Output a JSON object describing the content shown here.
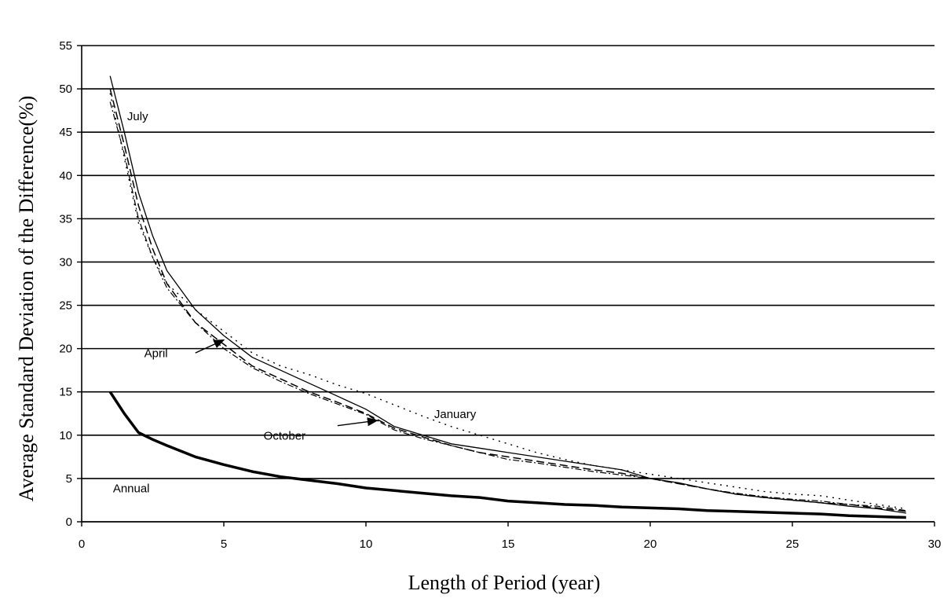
{
  "chart_data": {
    "type": "line",
    "xlabel": "Length of Period (year)",
    "ylabel": "Average Standard Deviation of the Difference(%)",
    "xlim": [
      0,
      30
    ],
    "ylim": [
      0,
      55
    ],
    "xticks": [
      0,
      5,
      10,
      15,
      20,
      25,
      30
    ],
    "yticks": [
      0,
      5,
      10,
      15,
      20,
      25,
      30,
      35,
      40,
      45,
      50,
      55
    ],
    "grid": "horizontal",
    "legend": "none",
    "series": [
      {
        "name": "July",
        "style": "thin-solid",
        "x": [
          1,
          1.5,
          2,
          2.5,
          3,
          4,
          5,
          6,
          7,
          8,
          9,
          10,
          11,
          12,
          13,
          14,
          15,
          16,
          17,
          18,
          19,
          20,
          21,
          22,
          23,
          24,
          25,
          26,
          27,
          28,
          29
        ],
        "y": [
          51.5,
          45.0,
          38.0,
          33.0,
          29.0,
          24.5,
          21.5,
          19.0,
          17.5,
          16.0,
          14.5,
          13.0,
          11.0,
          10.0,
          9.0,
          8.5,
          8.0,
          7.5,
          7.0,
          6.5,
          6.0,
          5.0,
          4.5,
          3.8,
          3.2,
          2.8,
          2.5,
          2.2,
          1.8,
          1.5,
          1.0
        ]
      },
      {
        "name": "April",
        "style": "dashed",
        "x": [
          1,
          1.5,
          2,
          2.5,
          3,
          4,
          5,
          6,
          7,
          8,
          9,
          10,
          11,
          12,
          13,
          14,
          15,
          16,
          17,
          18,
          19,
          20,
          21,
          22,
          23,
          24,
          25,
          26,
          27,
          28,
          29
        ],
        "y": [
          50.0,
          43.5,
          36.5,
          31.5,
          27.5,
          23.0,
          20.5,
          18.0,
          16.5,
          15.0,
          13.8,
          12.5,
          10.8,
          9.8,
          8.8,
          8.0,
          7.5,
          7.0,
          6.5,
          6.0,
          5.6,
          5.0,
          4.4,
          3.8,
          3.2,
          2.8,
          2.5,
          2.2,
          2.0,
          1.6,
          1.2
        ]
      },
      {
        "name": "October",
        "style": "dash-dot",
        "x": [
          1,
          1.5,
          2,
          2.5,
          3,
          4,
          5,
          6,
          7,
          8,
          9,
          10,
          11,
          12,
          13,
          14,
          15,
          16,
          17,
          18,
          19,
          20,
          21,
          22,
          23,
          24,
          25,
          26,
          27,
          28,
          29
        ],
        "y": [
          48.5,
          42.5,
          35.0,
          30.5,
          27.0,
          23.0,
          20.0,
          17.8,
          16.2,
          14.8,
          13.6,
          12.4,
          10.6,
          9.6,
          8.8,
          8.0,
          7.2,
          6.8,
          6.3,
          5.8,
          5.4,
          5.0,
          4.4,
          3.8,
          3.3,
          2.9,
          2.6,
          2.4,
          2.0,
          1.8,
          1.3
        ]
      },
      {
        "name": "January",
        "style": "dotted",
        "x": [
          1,
          1.5,
          2,
          2.5,
          3,
          4,
          5,
          6,
          7,
          8,
          9,
          10,
          11,
          12,
          13,
          14,
          15,
          16,
          17,
          18,
          19,
          20,
          21,
          22,
          23,
          24,
          25,
          26,
          27,
          28,
          29
        ],
        "y": [
          49.5,
          42.0,
          34.5,
          30.5,
          27.5,
          24.5,
          22.0,
          19.5,
          18.0,
          17.0,
          15.8,
          14.8,
          13.5,
          12.2,
          11.0,
          10.0,
          9.0,
          8.0,
          7.2,
          6.5,
          6.0,
          5.5,
          5.0,
          4.5,
          4.0,
          3.5,
          3.2,
          3.0,
          2.5,
          2.0,
          1.5
        ]
      },
      {
        "name": "Annual",
        "style": "thick-solid",
        "x": [
          1,
          1.5,
          2,
          2.5,
          3,
          4,
          5,
          6,
          7,
          8,
          9,
          10,
          11,
          12,
          13,
          14,
          15,
          16,
          17,
          18,
          19,
          20,
          21,
          22,
          23,
          24,
          25,
          26,
          27,
          28,
          29
        ],
        "y": [
          15.0,
          12.5,
          10.3,
          9.5,
          8.8,
          7.5,
          6.6,
          5.8,
          5.2,
          4.8,
          4.4,
          3.9,
          3.6,
          3.3,
          3.0,
          2.8,
          2.4,
          2.2,
          2.0,
          1.9,
          1.7,
          1.6,
          1.5,
          1.3,
          1.2,
          1.1,
          1.0,
          0.9,
          0.7,
          0.6,
          0.5
        ]
      }
    ],
    "annotations": [
      {
        "text": "July",
        "x": 1.6,
        "y": 46.4,
        "arrow": false
      },
      {
        "text": "April",
        "x": 2.2,
        "y": 19.0,
        "arrow_to": [
          5.0,
          21.0
        ],
        "arrow_from": [
          4.0,
          19.5
        ]
      },
      {
        "text": "October",
        "x": 6.4,
        "y": 9.5,
        "arrow_to": [
          10.4,
          11.7
        ],
        "arrow_from": [
          9.0,
          11.1
        ]
      },
      {
        "text": "January",
        "x": 12.4,
        "y": 12.0,
        "arrow": false
      },
      {
        "text": "Annual",
        "x": 1.1,
        "y": 3.4,
        "arrow": false
      }
    ]
  }
}
